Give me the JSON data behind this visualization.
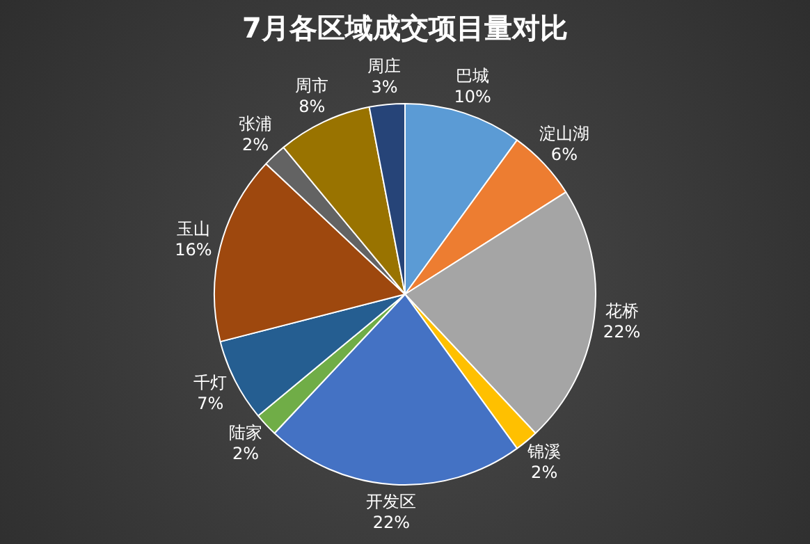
{
  "chart_data": {
    "type": "pie",
    "title": "7月各区域成交项目量对比",
    "categories": [
      "巴城",
      "淀山湖",
      "花桥",
      "锦溪",
      "开发区",
      "陆家",
      "千灯",
      "玉山",
      "张浦",
      "周市",
      "周庄"
    ],
    "values": [
      10,
      6,
      22,
      2,
      22,
      2,
      7,
      16,
      2,
      8,
      3
    ],
    "value_labels": [
      "10%",
      "6%",
      "22%",
      "2%",
      "22%",
      "2%",
      "7%",
      "16%",
      "2%",
      "8%",
      "3%"
    ],
    "colors": [
      "#5b9bd5",
      "#ed7d31",
      "#a5a5a5",
      "#ffc000",
      "#4472c4",
      "#70ad47",
      "#255e91",
      "#9e480e",
      "#636363",
      "#997300",
      "#264478"
    ],
    "legend": false
  }
}
